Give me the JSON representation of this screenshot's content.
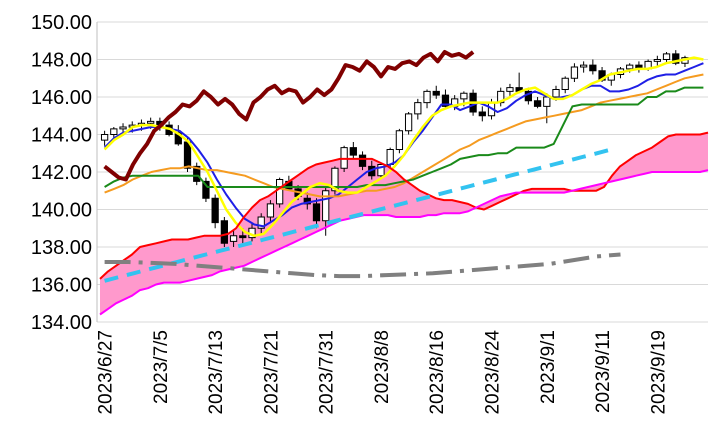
{
  "chart_data": {
    "type": "candlestick-ichimoku",
    "xlabel": "",
    "ylabel": "",
    "ylim": [
      134,
      150
    ],
    "y_ticks": [
      "134.00",
      "136.00",
      "138.00",
      "140.00",
      "142.00",
      "144.00",
      "146.00",
      "148.00",
      "150.00"
    ],
    "x_ticks": [
      "2023/6/27",
      "2023/7/5",
      "2023/7/13",
      "2023/7/21",
      "2023/7/31",
      "2023/8/8",
      "2023/8/16",
      "2023/8/24",
      "2023/9/1",
      "2023/9/11",
      "2023/9/19"
    ],
    "x_tick_index": [
      0,
      6,
      12,
      18,
      24,
      30,
      36,
      42,
      48,
      54,
      60
    ],
    "n_points": 66,
    "grid": "horizontal",
    "candles": [
      [
        143.7,
        144.2,
        143.4,
        144.0
      ],
      [
        144.0,
        144.4,
        143.8,
        144.3
      ],
      [
        144.3,
        144.6,
        144.0,
        144.4
      ],
      [
        144.4,
        144.7,
        144.1,
        144.5
      ],
      [
        144.5,
        144.8,
        144.2,
        144.6
      ],
      [
        144.6,
        144.9,
        144.3,
        144.7
      ],
      [
        144.7,
        144.9,
        144.2,
        144.4
      ],
      [
        144.5,
        144.7,
        143.9,
        144.0
      ],
      [
        144.1,
        144.5,
        143.4,
        143.5
      ],
      [
        143.6,
        143.8,
        142.0,
        142.2
      ],
      [
        142.3,
        142.5,
        141.3,
        141.5
      ],
      [
        141.5,
        141.7,
        140.4,
        140.6
      ],
      [
        140.6,
        140.8,
        139.0,
        139.3
      ],
      [
        139.4,
        139.6,
        138.0,
        138.2
      ],
      [
        138.3,
        138.9,
        138.0,
        138.6
      ],
      [
        138.6,
        139.0,
        138.1,
        138.5
      ],
      [
        138.5,
        139.3,
        138.3,
        139.0
      ],
      [
        139.0,
        139.8,
        138.7,
        139.6
      ],
      [
        139.6,
        140.5,
        139.3,
        140.3
      ],
      [
        140.3,
        141.7,
        140.1,
        141.6
      ],
      [
        141.5,
        141.8,
        141.0,
        141.1
      ],
      [
        141.1,
        141.3,
        140.5,
        140.7
      ],
      [
        140.6,
        140.9,
        140.0,
        140.3
      ],
      [
        140.3,
        140.6,
        139.0,
        139.4
      ],
      [
        139.4,
        141.2,
        138.6,
        141.0
      ],
      [
        141.0,
        142.3,
        140.8,
        142.2
      ],
      [
        142.2,
        143.4,
        142.0,
        143.3
      ],
      [
        143.3,
        143.6,
        142.7,
        142.9
      ],
      [
        142.9,
        143.1,
        142.1,
        142.3
      ],
      [
        142.3,
        142.6,
        141.6,
        141.8
      ],
      [
        141.8,
        142.5,
        141.6,
        142.4
      ],
      [
        142.4,
        143.3,
        142.2,
        143.2
      ],
      [
        143.2,
        144.3,
        143.0,
        144.2
      ],
      [
        144.2,
        145.2,
        144.0,
        145.1
      ],
      [
        145.1,
        145.9,
        144.8,
        145.7
      ],
      [
        145.7,
        146.4,
        145.4,
        146.3
      ],
      [
        146.3,
        146.6,
        145.9,
        146.1
      ],
      [
        146.1,
        146.4,
        145.4,
        145.5
      ],
      [
        145.5,
        146.1,
        145.3,
        145.9
      ],
      [
        145.9,
        146.3,
        145.5,
        146.2
      ],
      [
        146.2,
        146.4,
        145.0,
        145.2
      ],
      [
        145.2,
        145.5,
        144.7,
        145.0
      ],
      [
        145.0,
        145.9,
        144.8,
        145.7
      ],
      [
        145.7,
        146.5,
        145.5,
        146.3
      ],
      [
        146.3,
        146.7,
        146.0,
        146.5
      ],
      [
        146.5,
        147.3,
        146.2,
        146.3
      ],
      [
        146.3,
        146.5,
        145.6,
        145.8
      ],
      [
        145.8,
        146.0,
        145.4,
        145.5
      ],
      [
        145.5,
        146.2,
        144.6,
        146.0
      ],
      [
        146.0,
        146.6,
        145.8,
        146.4
      ],
      [
        146.4,
        147.1,
        146.2,
        147.0
      ],
      [
        147.0,
        147.8,
        146.8,
        147.6
      ],
      [
        147.6,
        147.9,
        147.3,
        147.7
      ],
      [
        147.7,
        148.0,
        147.2,
        147.4
      ],
      [
        147.4,
        147.6,
        146.8,
        146.9
      ],
      [
        146.9,
        147.3,
        146.6,
        147.2
      ],
      [
        147.2,
        147.6,
        147.0,
        147.5
      ],
      [
        147.5,
        147.8,
        147.3,
        147.7
      ],
      [
        147.7,
        147.9,
        147.3,
        147.5
      ],
      [
        147.5,
        148.0,
        147.4,
        147.9
      ],
      [
        147.9,
        148.2,
        147.6,
        148.0
      ],
      [
        148.0,
        148.4,
        147.8,
        148.3
      ],
      [
        148.3,
        148.5,
        147.7,
        147.8
      ],
      [
        147.8,
        148.2,
        147.6,
        148.1
      ]
    ],
    "series": [
      {
        "color": "#1f1fe6",
        "dash": "",
        "width": 2,
        "values": [
          143.3,
          143.8,
          144.1,
          144.2,
          144.3,
          144.4,
          144.4,
          144.3,
          144.2,
          143.8,
          143.2,
          142.5,
          141.6,
          140.8,
          140.1,
          139.5,
          139.2,
          139.1,
          139.4,
          139.7,
          140.1,
          140.3,
          140.4,
          140.5,
          140.6,
          140.8,
          141.2,
          141.6,
          142.0,
          142.2,
          142.3,
          142.5,
          142.9,
          143.6,
          144.2,
          144.9,
          145.6,
          145.6,
          145.3,
          145.5,
          145.7,
          145.5,
          145.2,
          145.4,
          145.8,
          146.1,
          146.3,
          146.1,
          145.9,
          146.0,
          146.1,
          146.4,
          146.6,
          146.6,
          146.3,
          146.3,
          146.4,
          146.6,
          146.9,
          147.1,
          147.2,
          147.2,
          147.4,
          147.6,
          147.8
        ]
      },
      {
        "color": "#f59b20",
        "dash": "",
        "width": 2,
        "values": [
          140.9,
          141.1,
          141.3,
          141.6,
          141.8,
          142.0,
          142.1,
          142.2,
          142.2,
          142.3,
          142.2,
          142.1,
          142.1,
          142.0,
          141.9,
          141.8,
          141.6,
          141.4,
          141.2,
          141.1,
          141.0,
          140.9,
          140.8,
          140.7,
          140.7,
          140.7,
          140.8,
          140.9,
          141.0,
          141.0,
          141.1,
          141.2,
          141.4,
          141.7,
          142.0,
          142.3,
          142.6,
          142.9,
          143.2,
          143.4,
          143.7,
          143.9,
          144.1,
          144.3,
          144.5,
          144.7,
          144.8,
          144.9,
          145.0,
          145.1,
          145.2,
          145.3,
          145.5,
          145.7,
          145.8,
          145.9,
          146.0,
          146.1,
          146.2,
          146.4,
          146.6,
          146.8,
          147.0,
          147.1,
          147.2
        ]
      },
      {
        "color": "#1a8a1a",
        "dash": "",
        "width": 2,
        "values": [
          141.2,
          141.5,
          141.7,
          141.8,
          141.8,
          141.8,
          141.8,
          141.8,
          141.8,
          141.8,
          141.8,
          141.2,
          141.2,
          141.2,
          141.2,
          141.2,
          141.2,
          141.2,
          141.2,
          141.2,
          141.2,
          141.2,
          141.2,
          141.2,
          141.2,
          141.2,
          141.2,
          141.2,
          141.3,
          141.3,
          141.3,
          141.4,
          141.5,
          141.6,
          141.8,
          142.0,
          142.2,
          142.4,
          142.7,
          142.8,
          142.9,
          142.9,
          143.0,
          143.0,
          143.3,
          143.3,
          143.3,
          143.3,
          143.5,
          144.5,
          145.5,
          145.6,
          145.6,
          145.6,
          145.6,
          145.6,
          145.6,
          145.6,
          146.0,
          146.0,
          146.3,
          146.3,
          146.5,
          146.5,
          146.5
        ]
      },
      {
        "color": "#ffff00",
        "dash": "",
        "width": 2.5,
        "values": [
          143.2,
          143.7,
          144.0,
          144.4,
          144.5,
          144.5,
          144.4,
          144.3,
          144.0,
          143.6,
          142.8,
          142.0,
          141.0,
          140.0,
          139.3,
          138.8,
          138.6,
          138.7,
          139.2,
          139.8,
          140.4,
          140.8,
          141.2,
          141.4,
          141.3,
          141.0,
          140.9,
          140.9,
          141.2,
          141.5,
          141.8,
          142.3,
          142.9,
          143.7,
          144.4,
          145.0,
          145.3,
          145.5,
          145.6,
          145.7,
          145.7,
          145.7,
          145.7,
          145.9,
          146.2,
          146.4,
          146.5,
          146.2,
          145.9,
          145.9,
          146.1,
          146.4,
          146.7,
          146.9,
          147.2,
          147.3,
          147.4,
          147.5,
          147.5,
          147.6,
          147.8,
          147.9,
          148.0,
          148.1,
          148.0
        ]
      },
      {
        "color": "#800000",
        "dash": "",
        "width": 4,
        "values": [
          142.3,
          142.0,
          141.7,
          141.6,
          142.4,
          143.0,
          143.5,
          144.2,
          144.5,
          144.9,
          145.2,
          145.6,
          145.5,
          145.8,
          146.3,
          146.0,
          145.6,
          145.9,
          145.6,
          145.1,
          144.8,
          145.7,
          146.0,
          146.4,
          146.6,
          146.2,
          146.4,
          146.3,
          145.7,
          146.0,
          146.4,
          146.1,
          146.4,
          147.0,
          147.7,
          147.6,
          147.4,
          147.9,
          147.6,
          147.1,
          147.6,
          147.5,
          147.8,
          147.9,
          147.7,
          148.1,
          148.3,
          147.9,
          148.4,
          148.2,
          148.3,
          148.1,
          148.4
        ]
      },
      {
        "color": "#ff0000",
        "dash": "",
        "width": 2,
        "values": [
          136.3,
          136.7,
          137.0,
          137.3,
          137.6,
          138.0,
          138.1,
          138.2,
          138.3,
          138.4,
          138.4,
          138.4,
          138.5,
          138.6,
          138.6,
          138.6,
          138.7,
          139.0,
          139.6,
          140.1,
          140.5,
          140.7,
          141.0,
          141.3,
          141.6,
          141.9,
          142.2,
          142.4,
          142.5,
          142.6,
          142.7,
          142.7,
          142.7,
          142.7,
          142.7,
          142.5,
          142.3,
          142.0,
          141.6,
          141.3,
          141.0,
          140.8,
          140.6,
          140.5,
          140.5,
          140.4,
          140.3,
          140.1,
          140.0,
          140.2,
          140.4,
          140.6,
          140.8,
          141.0,
          141.1,
          141.1,
          141.1,
          141.1,
          141.1,
          141.0,
          141.0,
          141.0,
          141.0,
          141.2,
          141.8,
          142.3,
          142.6,
          142.9,
          143.1,
          143.3,
          143.6,
          143.9,
          144.0,
          144.0,
          144.0,
          144.0,
          144.1
        ]
      },
      {
        "color": "#ff00ff",
        "dash": "",
        "width": 2,
        "values": [
          134.4,
          134.7,
          135.0,
          135.2,
          135.4,
          135.7,
          135.8,
          136.0,
          136.1,
          136.1,
          136.1,
          136.2,
          136.3,
          136.4,
          136.5,
          136.7,
          136.8,
          136.9,
          137.0,
          137.2,
          137.4,
          137.6,
          137.8,
          138.0,
          138.2,
          138.4,
          138.6,
          138.8,
          139.0,
          139.2,
          139.4,
          139.5,
          139.6,
          139.7,
          139.7,
          139.7,
          139.7,
          139.6,
          139.6,
          139.6,
          139.6,
          139.7,
          139.7,
          139.8,
          139.8,
          139.8,
          139.9,
          140.1,
          140.3,
          140.5,
          140.7,
          140.8,
          140.9,
          140.9,
          140.9,
          140.9,
          140.9,
          140.9,
          140.9,
          141.0,
          141.1,
          141.2,
          141.3,
          141.4,
          141.5,
          141.6,
          141.7,
          141.8,
          141.9,
          142.0,
          142.0,
          142.0,
          142.0,
          142.0,
          142.0,
          142.0,
          142.1
        ]
      },
      {
        "color": "#33c3f0",
        "dash": "14,9",
        "width": 4,
        "values": [
          136.2,
          136.4,
          136.6,
          136.8,
          137.0,
          137.2,
          137.4,
          137.6,
          137.8,
          138.0,
          138.2,
          138.4,
          138.6,
          138.8,
          139.0,
          139.2,
          139.4,
          139.6,
          139.8,
          140.0,
          140.2,
          140.4,
          140.6,
          140.8,
          141.0,
          141.2,
          141.4,
          141.6,
          141.8,
          142.0,
          142.2,
          142.4,
          142.6,
          142.8,
          143.0,
          143.2
        ]
      },
      {
        "color": "#808080",
        "dash": "26,8,4,8",
        "width": 4,
        "values": [
          137.2,
          137.2,
          137.15,
          137.1,
          137.0,
          136.9,
          136.8,
          136.7,
          136.6,
          136.5,
          136.45,
          136.45,
          136.5,
          136.55,
          136.6,
          136.7,
          136.8,
          136.9,
          137.0,
          137.1,
          137.3,
          137.5,
          137.6
        ]
      }
    ]
  }
}
